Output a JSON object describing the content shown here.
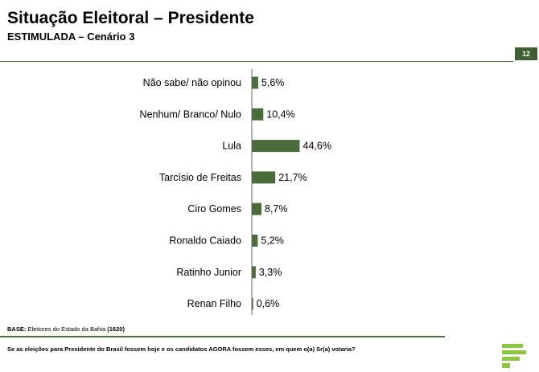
{
  "header": {
    "title": "Situação Eleitoral – Presidente",
    "subtitle": "ESTIMULADA – Cenário 3",
    "page_number": "12"
  },
  "footer": {
    "base_label": "BASE:",
    "base_text": "Eleitores do Estado da Bahia",
    "base_count": "(1620)",
    "question": "Se as eleições para Presidente do Brasil fossem hoje e os candidatos AGORA fossem esses, em quem o(a) Sr(a) votaria?"
  },
  "colors": {
    "bar": "#4a6b3a",
    "accent": "#3f5e33",
    "logo": "#8dc63f"
  },
  "chart_data": {
    "type": "bar",
    "orientation": "horizontal",
    "categories": [
      "Não sabe/ não opinou",
      "Nenhum/ Branco/ Nulo",
      "Lula",
      "Tarcísio de Freitas",
      "Ciro Gomes",
      "Ronaldo Caiado",
      "Ratinho Junior",
      "Renan Filho"
    ],
    "values": [
      5.6,
      10.4,
      44.6,
      21.7,
      8.7,
      5.2,
      3.3,
      0.6
    ],
    "value_labels": [
      "5,6%",
      "10,4%",
      "44,6%",
      "21,7%",
      "8,7%",
      "5,2%",
      "3,3%",
      "0,6%"
    ],
    "xlim": [
      0,
      100
    ],
    "grid": false,
    "legend": "none"
  }
}
